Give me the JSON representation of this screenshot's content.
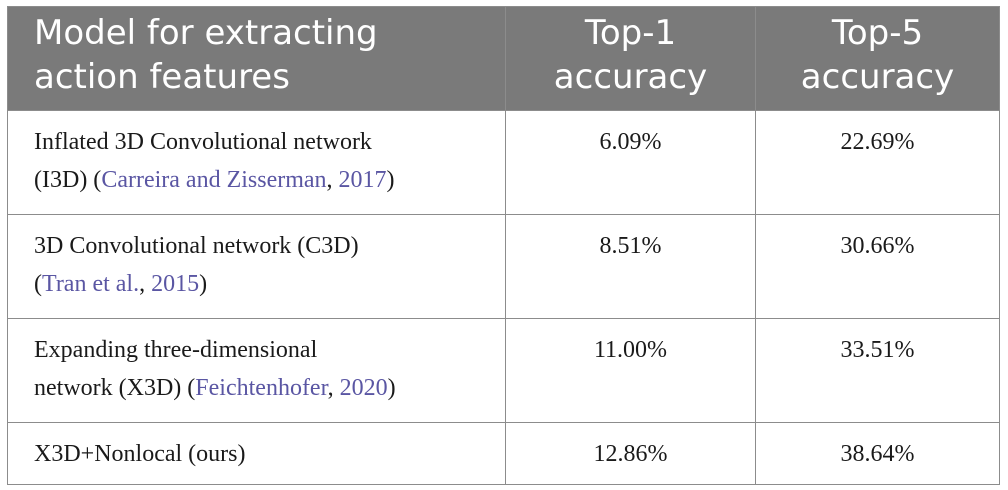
{
  "header": {
    "model_col": "Model for extracting action features",
    "model_col_line1": "Model for extracting",
    "model_col_line2": "action features",
    "top1_line1": "Top-1",
    "top1_line2": "accuracy",
    "top5_line1": "Top-5",
    "top5_line2": "accuracy"
  },
  "rows": [
    {
      "line1": "Inflated 3D Convolutional network",
      "line2_pre": "(I3D) (",
      "ref_text": "Carreira and Zisserman",
      "ref_sep": ", ",
      "ref_year": "2017",
      "line2_post": ")",
      "top1": "6.09%",
      "top5": "22.69%"
    },
    {
      "line1": "3D Convolutional network (C3D)",
      "line2_pre": "(",
      "ref_text": "Tran et al.",
      "ref_sep": ", ",
      "ref_year": "2015",
      "line2_post": ")",
      "top1": "8.51%",
      "top5": "30.66%"
    },
    {
      "line1": "Expanding three-dimensional",
      "line2_pre": "network (X3D) (",
      "ref_text": "Feichtenhofer",
      "ref_sep": ", ",
      "ref_year": "2020",
      "line2_post": ")",
      "top1": "11.00%",
      "top5": "33.51%"
    },
    {
      "line1": "X3D+Nonlocal (ours)",
      "top1": "12.86%",
      "top5": "38.64%"
    }
  ],
  "colors": {
    "header_bg": "#7a7a7a",
    "header_text": "#ffffff",
    "border": "#8c8c8c",
    "citation": "#5a56a3"
  }
}
